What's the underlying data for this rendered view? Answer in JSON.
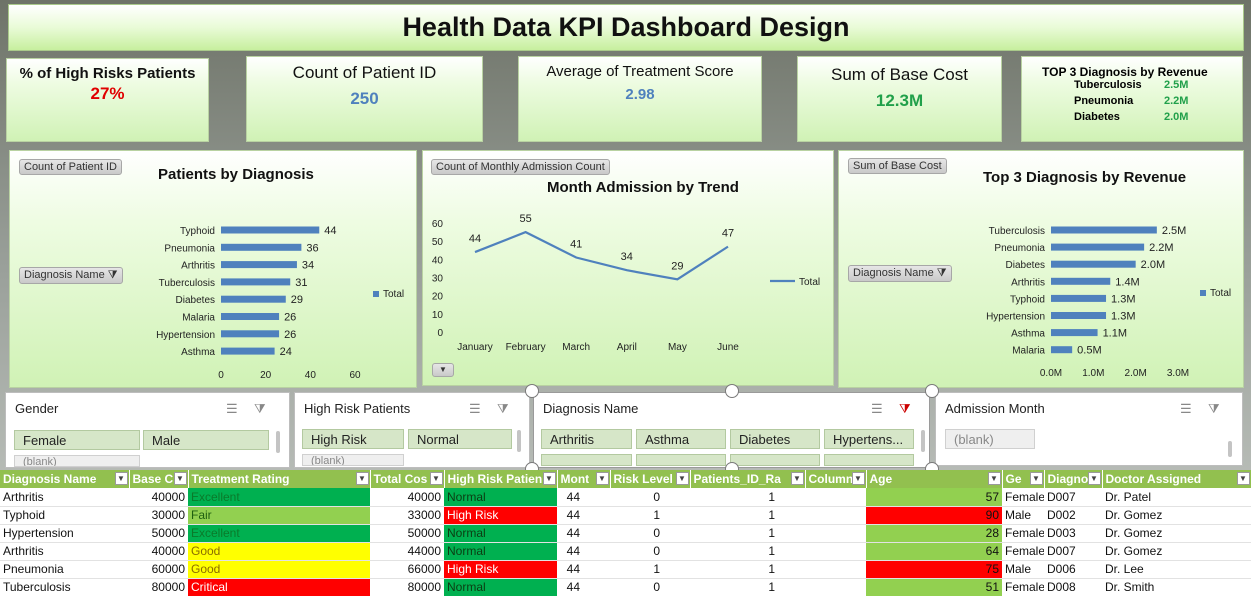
{
  "title": "Health Data KPI Dashboard Design",
  "kpis": {
    "high_risk": {
      "label": "% of High Risks Patients",
      "value": "27%",
      "color": "#e00000"
    },
    "patient_count": {
      "label": "Count of Patient ID",
      "value": "250",
      "color": "#4f81bd"
    },
    "treatment_score": {
      "label": "Average of Treatment Score",
      "value": "2.98",
      "color": "#4f81bd"
    },
    "base_cost": {
      "label": "Sum of Base Cost",
      "value": "12.3M",
      "color": "#21a04a"
    },
    "top3": {
      "title": "TOP 3 Diagnosis by Revenue",
      "rows": [
        {
          "name": "Tuberculosis",
          "value": "2.5M"
        },
        {
          "name": "Pneumonia",
          "value": "2.2M"
        },
        {
          "name": "Diabetes",
          "value": "2.0M"
        }
      ]
    }
  },
  "charts": {
    "diagnosis": {
      "tag": "Count of Patient ID",
      "title": "Patients by Diagnosis",
      "filter_tag": "Diagnosis Name",
      "legend": "Total"
    },
    "admission": {
      "tag": "Count of Monthly Admission Count",
      "title": "Month Admission by Trend",
      "legend": "Total"
    },
    "revenue": {
      "tag": "Sum of Base Cost",
      "title": "Top 3 Diagnosis by Revenue",
      "filter_tag": "Diagnosis Name",
      "legend": "Total"
    }
  },
  "chart_data": [
    {
      "type": "bar",
      "orientation": "horizontal",
      "title": "Patients by Diagnosis",
      "categories": [
        "Typhoid",
        "Pneumonia",
        "Arthritis",
        "Tuberculosis",
        "Diabetes",
        "Malaria",
        "Hypertension",
        "Asthma"
      ],
      "series": [
        {
          "name": "Total",
          "values": [
            44,
            36,
            34,
            31,
            29,
            26,
            26,
            24
          ]
        }
      ],
      "data_labels": [
        "44",
        "36",
        "34",
        "31",
        "29",
        "26",
        "26",
        "24"
      ],
      "xlim": [
        0,
        60
      ],
      "xticks": [
        "0",
        "20",
        "40",
        "60"
      ],
      "bar_color": "#4f81bd",
      "legend_position": "right"
    },
    {
      "type": "line",
      "title": "Month Admission by Trend",
      "categories": [
        "January",
        "February",
        "March",
        "April",
        "May",
        "June"
      ],
      "series": [
        {
          "name": "Total",
          "values": [
            44,
            55,
            41,
            34,
            29,
            47
          ]
        }
      ],
      "data_labels": [
        "44",
        "55",
        "41",
        "34",
        "29",
        "47"
      ],
      "ylim": [
        0,
        60
      ],
      "yticks": [
        "0",
        "10",
        "20",
        "30",
        "40",
        "50",
        "60"
      ],
      "line_color": "#4f81bd",
      "legend_position": "right"
    },
    {
      "type": "bar",
      "orientation": "horizontal",
      "title": "Top 3 Diagnosis by Revenue",
      "categories": [
        "Tuberculosis",
        "Pneumonia",
        "Diabetes",
        "Arthritis",
        "Typhoid",
        "Hypertension",
        "Asthma",
        "Malaria"
      ],
      "series": [
        {
          "name": "Total",
          "values": [
            2.5,
            2.2,
            2.0,
            1.4,
            1.3,
            1.3,
            1.1,
            0.5
          ]
        }
      ],
      "data_labels": [
        "2.5M",
        "2.2M",
        "2.0M",
        "1.4M",
        "1.3M",
        "1.3M",
        "1.1M",
        "0.5M"
      ],
      "xlim": [
        0,
        3
      ],
      "xticks": [
        "0.0M",
        "1.0M",
        "2.0M",
        "3.0M"
      ],
      "bar_color": "#4f81bd",
      "legend_position": "right"
    }
  ],
  "slicers": {
    "gender": {
      "title": "Gender",
      "items": [
        "Female",
        "Male"
      ],
      "blank": "(blank)"
    },
    "high_risk": {
      "title": "High Risk Patients",
      "items": [
        "High Risk",
        "Normal"
      ],
      "blank": "(blank)"
    },
    "diagnosis": {
      "title": "Diagnosis Name",
      "items": [
        "Arthritis",
        "Asthma",
        "Diabetes",
        "Hypertens..."
      ]
    },
    "admission": {
      "title": "Admission Month",
      "items": [
        "(blank)"
      ]
    }
  },
  "table": {
    "headers": [
      "Diagnosis Name",
      "Base C",
      "Treatment Rating",
      "Total Cos",
      "High Risk Patien",
      "Mont",
      "Risk Level",
      "Patients_ID_Ra",
      "Column",
      "Age",
      "Ge",
      "Diagno",
      "Doctor Assigned"
    ],
    "rows": [
      {
        "diag": "Arthritis",
        "base": "40000",
        "rating": "Excellent",
        "total": "40000",
        "risk": "Normal",
        "month": "44",
        "level": "0",
        "pid": "1",
        "age": "57",
        "gender": "Female",
        "code": "D007",
        "doctor": "Dr. Patel"
      },
      {
        "diag": "Typhoid",
        "base": "30000",
        "rating": "Fair",
        "total": "33000",
        "risk": "High Risk",
        "month": "44",
        "level": "1",
        "pid": "1",
        "age": "90",
        "gender": "Male",
        "code": "D002",
        "doctor": "Dr. Gomez"
      },
      {
        "diag": "Hypertension",
        "base": "50000",
        "rating": "Excellent",
        "total": "50000",
        "risk": "Normal",
        "month": "44",
        "level": "0",
        "pid": "1",
        "age": "28",
        "gender": "Female",
        "code": "D003",
        "doctor": "Dr. Gomez"
      },
      {
        "diag": "Arthritis",
        "base": "40000",
        "rating": "Good",
        "total": "44000",
        "risk": "Normal",
        "month": "44",
        "level": "0",
        "pid": "1",
        "age": "64",
        "gender": "Female",
        "code": "D007",
        "doctor": "Dr. Gomez"
      },
      {
        "diag": "Pneumonia",
        "base": "60000",
        "rating": "Good",
        "total": "66000",
        "risk": "High Risk",
        "month": "44",
        "level": "1",
        "pid": "1",
        "age": "75",
        "gender": "Male",
        "code": "D006",
        "doctor": "Dr. Lee"
      },
      {
        "diag": "Tuberculosis",
        "base": "80000",
        "rating": "Critical",
        "total": "80000",
        "risk": "Normal",
        "month": "44",
        "level": "0",
        "pid": "1",
        "age": "51",
        "gender": "Female",
        "code": "D008",
        "doctor": "Dr. Smith"
      }
    ]
  },
  "colors": {
    "excellent": "#00b050",
    "fair": "#92d050",
    "good": "#ffff00",
    "critical": "#ff0000",
    "high_risk": "#ff0000",
    "normal": "#00b050",
    "age_normal": "#92d050",
    "age_high": "#ff0000"
  }
}
